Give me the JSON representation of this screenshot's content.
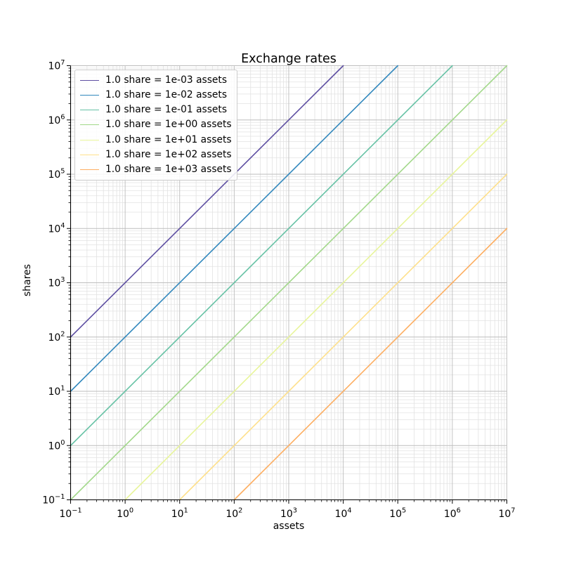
{
  "chart_data": {
    "type": "line",
    "title": "Exchange rates",
    "xlabel": "assets",
    "ylabel": "shares",
    "xscale": "log",
    "yscale": "log",
    "xlim": [
      0.1,
      10000000
    ],
    "ylim": [
      0.1,
      10000000
    ],
    "grid": "both",
    "legend_position": "upper left",
    "x_tick_exponents": [
      -1,
      0,
      1,
      2,
      3,
      4,
      5,
      6,
      7
    ],
    "y_tick_exponents": [
      -1,
      0,
      1,
      2,
      3,
      4,
      5,
      6,
      7
    ],
    "x_tick_values": [
      0.1,
      1,
      10,
      100,
      1000,
      10000,
      100000,
      1000000,
      10000000
    ],
    "y_tick_values": [
      0.1,
      1,
      10,
      100,
      1000,
      10000,
      100000,
      1000000,
      10000000
    ],
    "series": [
      {
        "label": "1.0 share = 1e-03 assets",
        "assets_per_share": 0.001,
        "shares_per_asset": 1000,
        "color": "#5e4fa2",
        "x": [
          0.1,
          10000
        ],
        "y": [
          100,
          10000000
        ]
      },
      {
        "label": "1.0 share = 1e-02 assets",
        "assets_per_share": 0.01,
        "shares_per_asset": 100,
        "color": "#3288bd",
        "x": [
          0.1,
          100000
        ],
        "y": [
          10,
          10000000
        ]
      },
      {
        "label": "1.0 share = 1e-01 assets",
        "assets_per_share": 0.1,
        "shares_per_asset": 10,
        "color": "#66c2a5",
        "x": [
          0.1,
          1000000
        ],
        "y": [
          1,
          10000000
        ]
      },
      {
        "label": "1.0 share = 1e+00 assets",
        "assets_per_share": 1,
        "shares_per_asset": 1,
        "color": "#a2d88a",
        "x": [
          0.1,
          10000000
        ],
        "y": [
          0.1,
          10000000
        ]
      },
      {
        "label": "1.0 share = 1e+01 assets",
        "assets_per_share": 10,
        "shares_per_asset": 0.1,
        "color": "#e8f59b",
        "x": [
          1,
          10000000
        ],
        "y": [
          0.1,
          1000000
        ]
      },
      {
        "label": "1.0 share = 1e+02 assets",
        "assets_per_share": 100,
        "shares_per_asset": 0.01,
        "color": "#fee08b",
        "x": [
          10,
          10000000
        ],
        "y": [
          0.1,
          100000
        ]
      },
      {
        "label": "1.0 share = 1e+03 assets",
        "assets_per_share": 1000,
        "shares_per_asset": 0.001,
        "color": "#fdae61",
        "x": [
          100,
          10000000
        ],
        "y": [
          0.1,
          10000
        ]
      }
    ],
    "colors": {
      "background": "#ffffff",
      "spine": "#000000",
      "tick": "#000000",
      "text": "#000000",
      "grid_major": "#bdbdbd",
      "grid_minor": "#e2e2e2"
    }
  }
}
